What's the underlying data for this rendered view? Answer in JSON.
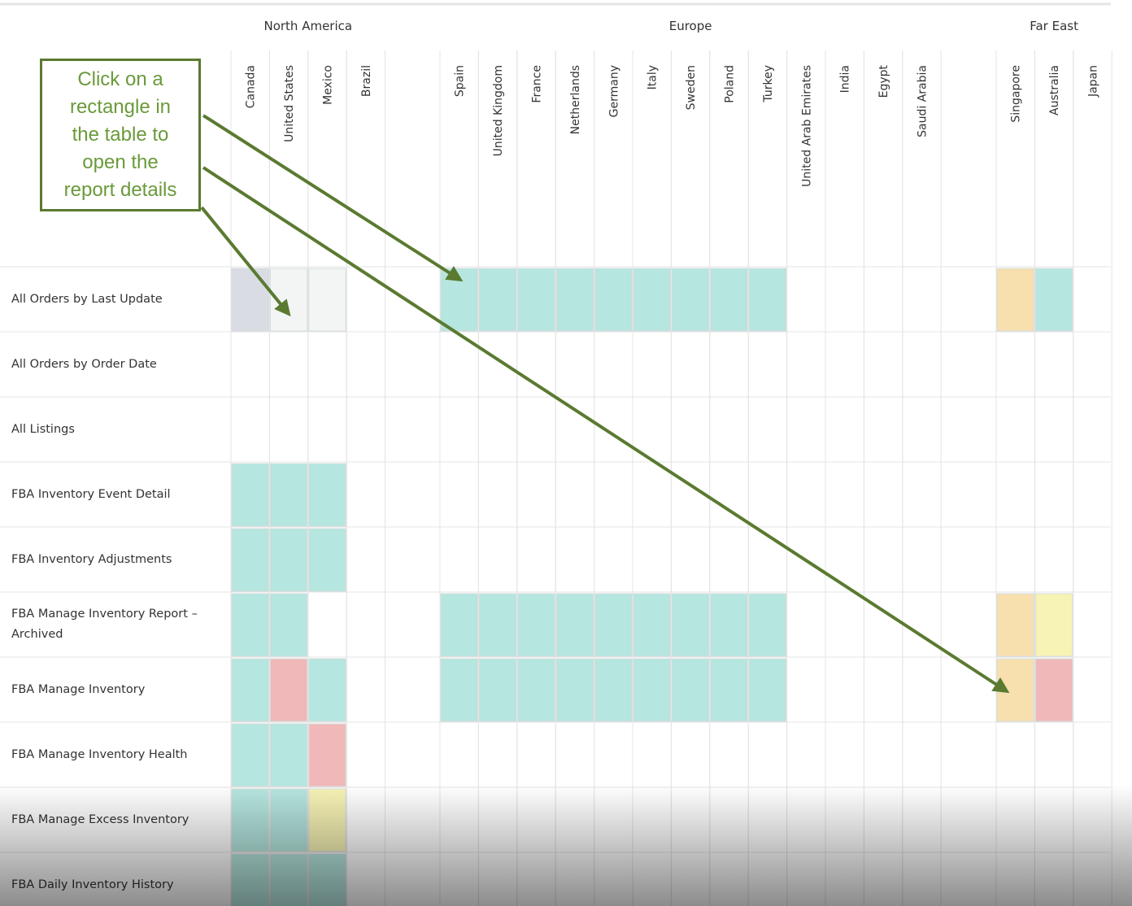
{
  "regions": [
    {
      "name": "North America",
      "columns": [
        "Canada",
        "United States",
        "Mexico",
        "Brazil"
      ]
    },
    {
      "name": "Europe",
      "columns": [
        "Spain",
        "United Kingdom",
        "France",
        "Netherlands",
        "Germany",
        "Italy",
        "Sweden",
        "Poland",
        "Turkey",
        "United Arab Emirates",
        "India",
        "Egypt",
        "Saudi Arabia"
      ]
    },
    {
      "name": "Far East",
      "columns": [
        "Singapore",
        "Australia",
        "Japan"
      ]
    }
  ],
  "rows": [
    {
      "label": "All Orders by Last Update",
      "cells": [
        "#d9dde3",
        "#f3f5f5",
        "#f3f5f5",
        null,
        "#b5e6df",
        "#b5e6df",
        "#b5e6df",
        "#b5e6df",
        "#b5e6df",
        "#b5e6df",
        "#b5e6df",
        "#b5e6df",
        "#b5e6df",
        null,
        null,
        null,
        null,
        "#f7dfae",
        "#b5e6df",
        null
      ]
    },
    {
      "label": "All Orders by Order Date",
      "cells": [
        null,
        null,
        null,
        null,
        null,
        null,
        null,
        null,
        null,
        null,
        null,
        null,
        null,
        null,
        null,
        null,
        null,
        null,
        null,
        null
      ]
    },
    {
      "label": "All Listings",
      "cells": [
        null,
        null,
        null,
        null,
        null,
        null,
        null,
        null,
        null,
        null,
        null,
        null,
        null,
        null,
        null,
        null,
        null,
        null,
        null,
        null
      ]
    },
    {
      "label": "FBA Inventory Event Detail",
      "cells": [
        "#b5e6df",
        "#b5e6df",
        "#b5e6df",
        null,
        null,
        null,
        null,
        null,
        null,
        null,
        null,
        null,
        null,
        null,
        null,
        null,
        null,
        null,
        null,
        null
      ]
    },
    {
      "label": "FBA Inventory Adjustments",
      "cells": [
        "#b5e6df",
        "#b5e6df",
        "#b5e6df",
        null,
        null,
        null,
        null,
        null,
        null,
        null,
        null,
        null,
        null,
        null,
        null,
        null,
        null,
        null,
        null,
        null
      ]
    },
    {
      "label": "FBA Manage Inventory Report – Archived",
      "cells": [
        "#b5e6df",
        "#b5e6df",
        null,
        null,
        "#b5e6df",
        "#b5e6df",
        "#b5e6df",
        "#b5e6df",
        "#b5e6df",
        "#b5e6df",
        "#b5e6df",
        "#b5e6df",
        "#b5e6df",
        null,
        null,
        null,
        null,
        "#f7dfae",
        "#f7f3b5",
        null
      ]
    },
    {
      "label": "FBA Manage Inventory",
      "cells": [
        "#b5e6df",
        "#f0b8b8",
        "#b5e6df",
        null,
        "#b5e6df",
        "#b5e6df",
        "#b5e6df",
        "#b5e6df",
        "#b5e6df",
        "#b5e6df",
        "#b5e6df",
        "#b5e6df",
        "#b5e6df",
        null,
        null,
        null,
        null,
        "#f7dfae",
        "#f0b8b8",
        null
      ]
    },
    {
      "label": "FBA Manage Inventory Health",
      "cells": [
        "#b5e6df",
        "#b5e6df",
        "#f0b8b8",
        null,
        null,
        null,
        null,
        null,
        null,
        null,
        null,
        null,
        null,
        null,
        null,
        null,
        null,
        null,
        null,
        null
      ]
    },
    {
      "label": "FBA Manage Excess Inventory",
      "cells": [
        "#b5e6df",
        "#b5e6df",
        "#f7f3b5",
        null,
        null,
        null,
        null,
        null,
        null,
        null,
        null,
        null,
        null,
        null,
        null,
        null,
        null,
        null,
        null,
        null
      ]
    },
    {
      "label": "FBA Daily Inventory History",
      "cells": [
        "#b5e6df",
        "#b5e6df",
        "#b5e6df",
        null,
        null,
        null,
        null,
        null,
        null,
        null,
        null,
        null,
        null,
        null,
        null,
        null,
        null,
        null,
        null,
        null
      ]
    }
  ],
  "callout": {
    "lines": [
      "Click on a",
      "rectangle in",
      "the table to",
      "open the",
      "report details"
    ]
  }
}
